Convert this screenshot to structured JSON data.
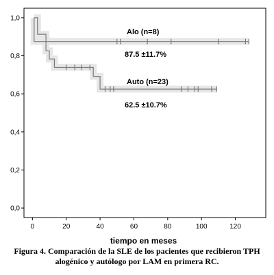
{
  "chart_data": {
    "type": "line",
    "subtype": "kaplan-meier step",
    "xlabel": "tiempo en meses",
    "ylabel": "",
    "xlim": [
      -5,
      138
    ],
    "ylim": [
      -0.05,
      1.05
    ],
    "x_ticks": [
      0,
      20,
      40,
      60,
      80,
      100,
      120
    ],
    "y_ticks": [
      0.0,
      0.2,
      0.4,
      0.6,
      0.8,
      1.0
    ],
    "y_tick_labels": [
      "0,0",
      "0,2",
      "0,4",
      "0,6",
      "0,8",
      "1,0"
    ],
    "grid": false,
    "line_color": "#7a7a7a",
    "ci_band_color": "#e6e6e6",
    "series": [
      {
        "label": "Alo (n=8)",
        "annotation": "87.5 ±11.7%",
        "steps": [
          [
            1,
            1.0
          ],
          [
            1,
            0.875
          ],
          [
            128,
            0.875
          ]
        ],
        "censored_x": [
          50,
          52,
          68,
          82,
          110,
          126,
          128
        ]
      },
      {
        "label": "Auto (n=23)",
        "annotation": "62.5 ±10.7%",
        "steps": [
          [
            1,
            1.0
          ],
          [
            3,
            1.0
          ],
          [
            3,
            0.913
          ],
          [
            8,
            0.913
          ],
          [
            8,
            0.826
          ],
          [
            10,
            0.826
          ],
          [
            10,
            0.783
          ],
          [
            13,
            0.783
          ],
          [
            13,
            0.739
          ],
          [
            36,
            0.739
          ],
          [
            36,
            0.692
          ],
          [
            40,
            0.692
          ],
          [
            40,
            0.625
          ],
          [
            109,
            0.625
          ]
        ],
        "censored_x": [
          20,
          25,
          29,
          34,
          43,
          46,
          48,
          88,
          92,
          96,
          98,
          106,
          109
        ]
      }
    ]
  },
  "caption": {
    "line1": "Figura 4. Comparación de la SLE de los pacientes que recibieron TPH",
    "line2": "alogénico y autólogo por LAM en primera RC."
  }
}
